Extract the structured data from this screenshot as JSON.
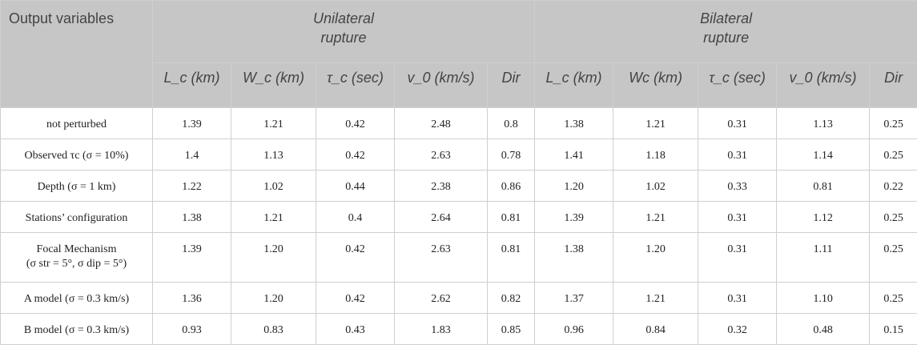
{
  "table": {
    "title_header": "Output variables",
    "groups": [
      {
        "label_line1": "Unilateral",
        "label_line2": "rupture"
      },
      {
        "label_line1": "Bilateral",
        "label_line2": "rupture"
      }
    ],
    "columns": [
      "L_c (km)",
      "W_c (km)",
      "τ_c (sec)",
      "v_0 (km/s)",
      "Dir",
      "L_c (km)",
      "Wc (km)",
      "τ_c (sec)",
      "v_0 (km/s)",
      "Dir"
    ],
    "rows": [
      {
        "label": "not perturbed",
        "values": [
          "1.39",
          "1.21",
          "0.42",
          "2.48",
          "0.8",
          "1.38",
          "1.21",
          "0.31",
          "1.13",
          "0.25"
        ]
      },
      {
        "label": "Observed τc (σ = 10%)",
        "values": [
          "1.4",
          "1.13",
          "0.42",
          "2.63",
          "0.78",
          "1.41",
          "1.18",
          "0.31",
          "1.14",
          "0.25"
        ]
      },
      {
        "label": "Depth (σ = 1 km)",
        "values": [
          "1.22",
          "1.02",
          "0.44",
          "2.38",
          "0.86",
          "1.20",
          "1.02",
          "0.33",
          "0.81",
          "0.22"
        ]
      },
      {
        "label": "Stations’ configuration",
        "values": [
          "1.38",
          "1.21",
          "0.4",
          "2.64",
          "0.81",
          "1.39",
          "1.21",
          "0.31",
          "1.12",
          "0.25"
        ]
      },
      {
        "label": "Focal Mechanism",
        "label2": "(σ str = 5°, σ dip = 5°)",
        "values": [
          "1.39",
          "1.20",
          "0.42",
          "2.63",
          "0.81",
          "1.38",
          "1.20",
          "0.31",
          "1.11",
          "0.25"
        ]
      },
      {
        "label": "A model (σ = 0.3 km/s)",
        "values": [
          "1.36",
          "1.20",
          "0.42",
          "2.62",
          "0.82",
          "1.37",
          "1.21",
          "0.31",
          "1.10",
          "0.25"
        ]
      },
      {
        "label": "B model (σ = 0.3 km/s)",
        "values": [
          "0.93",
          "0.83",
          "0.43",
          "1.83",
          "0.85",
          "0.96",
          "0.84",
          "0.32",
          "0.48",
          "0.15"
        ]
      }
    ]
  }
}
